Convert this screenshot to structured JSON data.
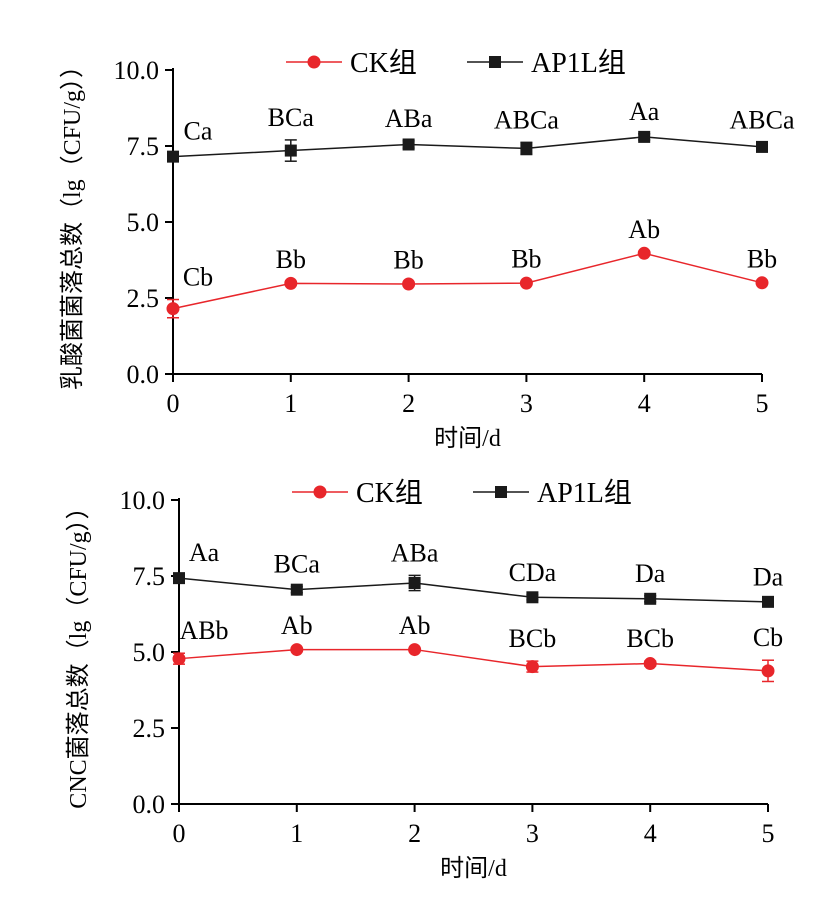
{
  "colors": {
    "ck": "#e8262b",
    "ap1l": "#1a1a1a",
    "axis": "#000000"
  },
  "chart_data": [
    {
      "type": "line",
      "x": [
        0,
        1,
        2,
        3,
        4,
        5
      ],
      "x_tick_labels": [
        "0",
        "1",
        "2",
        "3",
        "4",
        "5"
      ],
      "ylim": [
        0,
        10
      ],
      "y_tick_labels": [
        "0.0",
        "2.5",
        "5.0",
        "7.5",
        "10.0"
      ],
      "xlabel": "时间/d",
      "ylabel": "乳酸菌菌落总数（lg（CFU/g））",
      "legend": {
        "position": "top",
        "labels": [
          "CK组",
          "AP1L组"
        ]
      },
      "series": [
        {
          "name": "CK组",
          "marker": "circle",
          "values": [
            2.15,
            2.98,
            2.96,
            2.99,
            3.97,
            3.0
          ],
          "errors": [
            0.3,
            0.05,
            0.05,
            0.05,
            0.05,
            0.05
          ],
          "labels": [
            "Cb",
            "Bb",
            "Bb",
            "Bb",
            "Ab",
            "Bb"
          ]
        },
        {
          "name": "AP1L组",
          "marker": "square",
          "values": [
            7.15,
            7.35,
            7.55,
            7.42,
            7.8,
            7.47
          ],
          "errors": [
            0.1,
            0.35,
            0.12,
            0.2,
            0.1,
            0.15
          ],
          "labels": [
            "Ca",
            "BCa",
            "ABa",
            "ABCa",
            "Aa",
            "ABCa"
          ]
        }
      ]
    },
    {
      "type": "line",
      "x": [
        0,
        1,
        2,
        3,
        4,
        5
      ],
      "x_tick_labels": [
        "0",
        "1",
        "2",
        "3",
        "4",
        "5"
      ],
      "ylim": [
        0,
        10
      ],
      "y_tick_labels": [
        "0.0",
        "2.5",
        "5.0",
        "7.5",
        "10.0"
      ],
      "xlabel": "时间/d",
      "ylabel": "CNC菌落总数（lg（CFU/g））",
      "legend": {
        "position": "top",
        "labels": [
          "CK组",
          "AP1L组"
        ]
      },
      "series": [
        {
          "name": "CK组",
          "marker": "circle",
          "values": [
            4.78,
            5.08,
            5.08,
            4.52,
            4.62,
            4.38
          ],
          "errors": [
            0.18,
            0.05,
            0.05,
            0.18,
            0.08,
            0.35
          ],
          "labels": [
            "ABb",
            "Ab",
            "Ab",
            "BCb",
            "BCb",
            "Cb"
          ]
        },
        {
          "name": "AP1L组",
          "marker": "square",
          "values": [
            7.43,
            7.05,
            7.27,
            6.8,
            6.75,
            6.65
          ],
          "errors": [
            0.1,
            0.1,
            0.25,
            0.08,
            0.1,
            0.08
          ],
          "labels": [
            "Aa",
            "BCa",
            "ABa",
            "CDa",
            "Da",
            "Da"
          ]
        }
      ]
    }
  ]
}
